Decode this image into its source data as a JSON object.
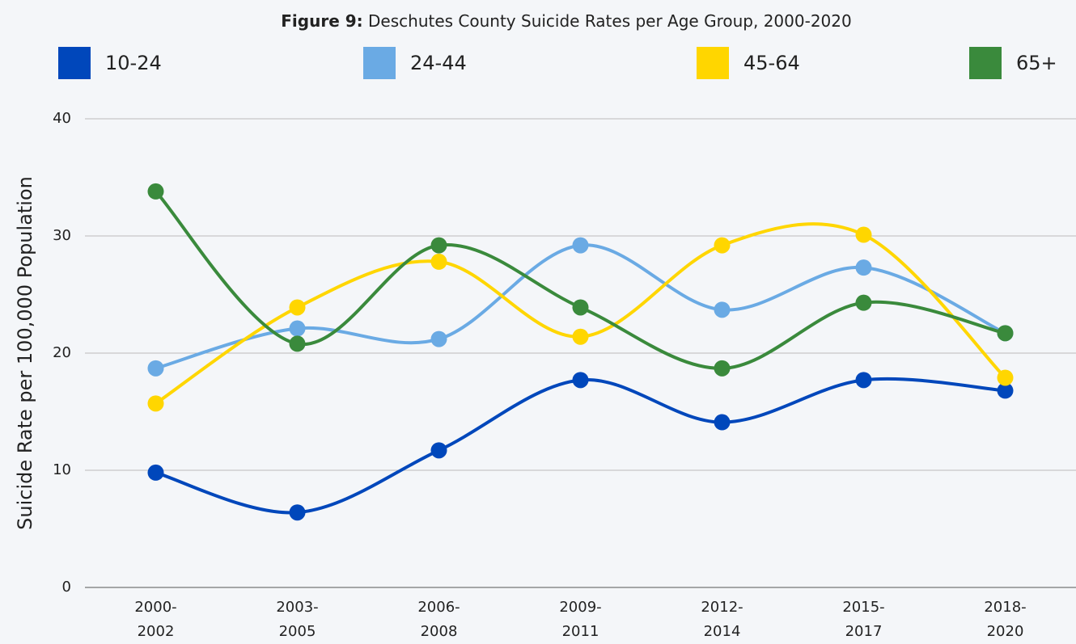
{
  "chart_data": {
    "type": "line",
    "title": {
      "label": "Figure 9:",
      "text": "Deschutes County Suicide Rates per Age Group, 2000-2020"
    },
    "y_label": "Suicide Rate per 100,000 Population",
    "categories": [
      [
        "2000-",
        "2002"
      ],
      [
        "2003-",
        "2005"
      ],
      [
        "2006-",
        "2008"
      ],
      [
        "2009-",
        "2011"
      ],
      [
        "2012-",
        "2014"
      ],
      [
        "2015-",
        "2017"
      ],
      [
        "2018-",
        "2020"
      ]
    ],
    "series": [
      {
        "name": "10-24",
        "color": "#0047bb",
        "values": [
          9.8,
          6.4,
          11.7,
          17.7,
          14.1,
          17.7,
          16.8
        ]
      },
      {
        "name": "24-44",
        "color": "#6aaae4",
        "values": [
          18.7,
          22.1,
          21.2,
          29.2,
          23.7,
          27.3,
          21.7
        ]
      },
      {
        "name": "45-64",
        "color": "#ffd600",
        "values": [
          15.7,
          23.9,
          27.8,
          21.4,
          29.2,
          30.1,
          17.9
        ]
      },
      {
        "name": "65+",
        "color": "#3a8a3c",
        "values": [
          33.8,
          20.8,
          29.2,
          23.9,
          18.7,
          24.3,
          21.7
        ]
      }
    ],
    "ylim": [
      0,
      40
    ],
    "yticks": [
      0,
      10,
      20,
      30,
      40
    ],
    "grid": true,
    "smooth": true
  }
}
